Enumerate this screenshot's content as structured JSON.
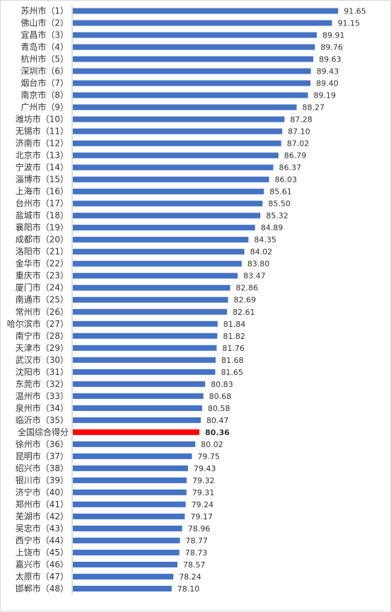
{
  "chart_data": {
    "type": "bar",
    "orientation": "horizontal",
    "grid": false,
    "categories": [
      "苏州市（1）",
      "佛山市（2）",
      "宜昌市（3）",
      "青岛市（4）",
      "杭州市（5）",
      "深圳市（6）",
      "烟台市（7）",
      "南京市（8）",
      "广州市（9）",
      "潍坊市（10）",
      "无锡市（11）",
      "济南市（12）",
      "北京市（13）",
      "宁波市（14）",
      "淄博市（15）",
      "上海市（16）",
      "台州市（17）",
      "盐城市（18）",
      "襄阳市（19）",
      "成都市（20）",
      "洛阳市（21）",
      "金华市（22）",
      "重庆市（23）",
      "厦门市（24）",
      "南通市（25）",
      "常州市（26）",
      "哈尔滨市（27）",
      "南宁市（28）",
      "天津市（29）",
      "武汉市（30）",
      "沈阳市（31）",
      "东莞市（32）",
      "温州市（33）",
      "泉州市（34）",
      "临沂市（35）",
      "全国综合得分",
      "徐州市（36）",
      "昆明市（37）",
      "绍兴市（38）",
      "银川市（39）",
      "济宁市（40）",
      "郑州市（41）",
      "芜湖市（42）",
      "吴忠市（43）",
      "西宁市（44）",
      "上饶市（45）",
      "嘉兴市（46）",
      "太原市（47）",
      "邯郸市（48）"
    ],
    "values": [
      91.65,
      91.15,
      89.91,
      89.76,
      89.63,
      89.43,
      89.4,
      89.19,
      88.27,
      87.28,
      87.1,
      87.02,
      86.79,
      86.37,
      86.03,
      85.61,
      85.5,
      85.32,
      84.89,
      84.35,
      84.02,
      83.8,
      83.47,
      82.86,
      82.69,
      82.61,
      81.84,
      81.82,
      81.76,
      81.68,
      81.65,
      80.83,
      80.68,
      80.58,
      80.47,
      80.36,
      80.02,
      79.75,
      79.43,
      79.32,
      79.31,
      79.24,
      79.17,
      78.96,
      78.77,
      78.73,
      78.57,
      78.24,
      78.1
    ],
    "value_labels": [
      "91.65",
      "91.15",
      "89.91",
      "89.76",
      "89.63",
      "89.43",
      "89.40",
      "89.19",
      "88.27",
      "87.28",
      "87.10",
      "87.02",
      "86.79",
      "86.37",
      "86.03",
      "85.61",
      "85.50",
      "85.32",
      "84.89",
      "84.35",
      "84.02",
      "83.80",
      "83.47",
      "82.86",
      "82.69",
      "82.61",
      "81.84",
      "81.82",
      "81.76",
      "81.68",
      "81.65",
      "80.83",
      "80.68",
      "80.58",
      "80.47",
      "80.36",
      "80.02",
      "79.75",
      "79.43",
      "79.32",
      "79.31",
      "79.24",
      "79.17",
      "78.96",
      "78.77",
      "78.73",
      "78.57",
      "78.24",
      "78.10"
    ],
    "xlim": [
      70,
      92.5
    ],
    "highlight_index": 35,
    "colors": {
      "bar": "#4472C4",
      "highlight": "#FF0000",
      "axis": "#bfbfbf",
      "text": "#333333"
    }
  }
}
